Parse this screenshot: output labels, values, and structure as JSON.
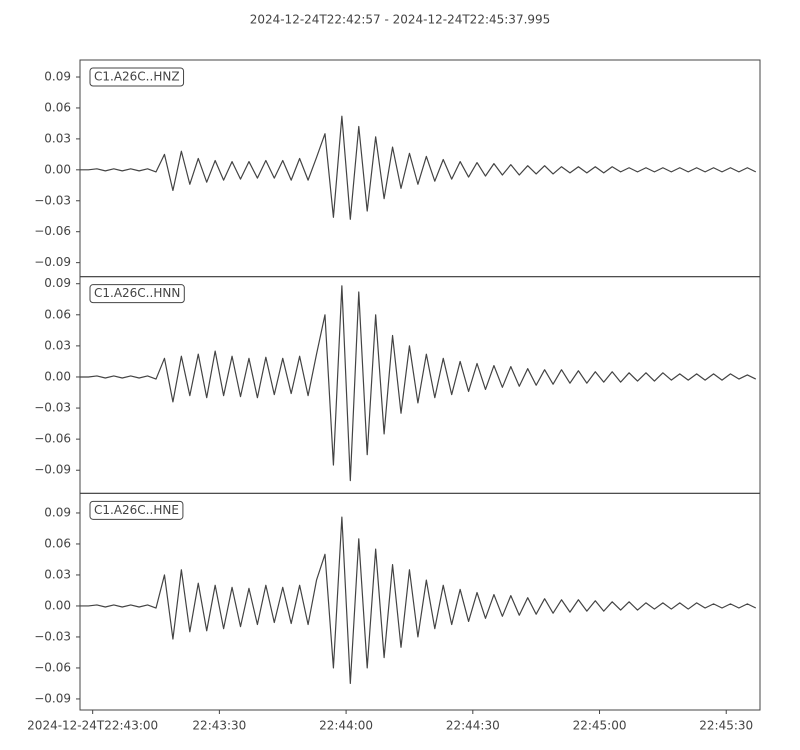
{
  "chart_data": {
    "type": "line",
    "title": "2024-12-24T22:42:57  -  2024-12-24T22:45:37.995",
    "xlim": [
      "2024-12-24T22:42:57",
      "2024-12-24T22:45:37.995"
    ],
    "xticks": [
      "2024-12-24T22:43:00",
      "22:43:30",
      "22:44:00",
      "22:44:30",
      "22:45:00",
      "22:45:30"
    ],
    "x": [
      "22:42:57",
      "22:42:59",
      "22:43:01",
      "22:43:03",
      "22:43:05",
      "22:43:07",
      "22:43:09",
      "22:43:11",
      "22:43:13",
      "22:43:15",
      "22:43:17",
      "22:43:19",
      "22:43:21",
      "22:43:23",
      "22:43:25",
      "22:43:27",
      "22:43:29",
      "22:43:31",
      "22:43:33",
      "22:43:35",
      "22:43:37",
      "22:43:39",
      "22:43:41",
      "22:43:43",
      "22:43:45",
      "22:43:47",
      "22:43:49",
      "22:43:51",
      "22:43:53",
      "22:43:55",
      "22:43:57",
      "22:43:59",
      "22:44:01",
      "22:44:03",
      "22:44:05",
      "22:44:07",
      "22:44:09",
      "22:44:11",
      "22:44:13",
      "22:44:15",
      "22:44:17",
      "22:44:19",
      "22:44:21",
      "22:44:23",
      "22:44:25",
      "22:44:27",
      "22:44:29",
      "22:44:31",
      "22:44:33",
      "22:44:35",
      "22:44:37",
      "22:44:39",
      "22:44:41",
      "22:44:43",
      "22:44:45",
      "22:44:47",
      "22:44:49",
      "22:44:51",
      "22:44:53",
      "22:44:55",
      "22:44:57",
      "22:44:59",
      "22:45:01",
      "22:45:03",
      "22:45:05",
      "22:45:07",
      "22:45:09",
      "22:45:11",
      "22:45:13",
      "22:45:15",
      "22:45:17",
      "22:45:19",
      "22:45:21",
      "22:45:23",
      "22:45:25",
      "22:45:27",
      "22:45:29",
      "22:45:31",
      "22:45:33",
      "22:45:35",
      "22:45:37"
    ],
    "series": [
      {
        "name": "C1.A26C..HNZ",
        "color": "#444444",
        "ylim": [
          -0.1036,
          0.1065
        ],
        "yticks": [
          0.09,
          0.06,
          0.03,
          {
            "value": 0,
            "label": "0.00"
          },
          {
            "value": -0.03,
            "label": "−0.03"
          },
          {
            "value": -0.06,
            "label": "−0.06"
          },
          {
            "value": -0.09,
            "label": "−0.09"
          }
        ],
        "values": [
          0,
          0,
          0.001,
          -0.001,
          0.001,
          -0.001,
          0.001,
          -0.001,
          0.001,
          -0.002,
          0.015,
          -0.02,
          0.018,
          -0.014,
          0.011,
          -0.012,
          0.009,
          -0.01,
          0.008,
          -0.009,
          0.008,
          -0.008,
          0.009,
          -0.008,
          0.009,
          -0.01,
          0.011,
          -0.01,
          0.012,
          0.035,
          -0.046,
          0.052,
          -0.048,
          0.042,
          -0.04,
          0.032,
          -0.028,
          0.022,
          -0.018,
          0.016,
          -0.014,
          0.013,
          -0.011,
          0.01,
          -0.009,
          0.008,
          -0.007,
          0.007,
          -0.006,
          0.006,
          -0.005,
          0.005,
          -0.005,
          0.004,
          -0.004,
          0.004,
          -0.004,
          0.003,
          -0.003,
          0.003,
          -0.003,
          0.003,
          -0.003,
          0.003,
          -0.002,
          0.002,
          -0.002,
          0.002,
          -0.002,
          0.002,
          -0.002,
          0.002,
          -0.002,
          0.002,
          -0.002,
          0.002,
          -0.002,
          0.002,
          -0.002,
          0.002,
          -0.002
        ]
      },
      {
        "name": "C1.A26C..HNN",
        "color": "#444444",
        "ylim": [
          -0.1123,
          0.0968
        ],
        "yticks": [
          0.09,
          0.06,
          0.03,
          {
            "value": 0,
            "label": "0.00"
          },
          {
            "value": -0.03,
            "label": "−0.03"
          },
          {
            "value": -0.06,
            "label": "−0.06"
          },
          {
            "value": -0.09,
            "label": "−0.09"
          }
        ],
        "values": [
          0,
          0,
          0.001,
          -0.001,
          0.001,
          -0.001,
          0.001,
          -0.001,
          0.001,
          -0.002,
          0.018,
          -0.024,
          0.02,
          -0.018,
          0.022,
          -0.02,
          0.025,
          -0.018,
          0.02,
          -0.019,
          0.018,
          -0.02,
          0.019,
          -0.017,
          0.018,
          -0.016,
          0.02,
          -0.018,
          0.022,
          0.06,
          -0.085,
          0.088,
          -0.1,
          0.082,
          -0.075,
          0.06,
          -0.055,
          0.04,
          -0.035,
          0.03,
          -0.025,
          0.022,
          -0.02,
          0.018,
          -0.017,
          0.015,
          -0.014,
          0.013,
          -0.012,
          0.011,
          -0.01,
          0.01,
          -0.009,
          0.008,
          -0.008,
          0.007,
          -0.007,
          0.007,
          -0.006,
          0.006,
          -0.006,
          0.005,
          -0.005,
          0.005,
          -0.005,
          0.004,
          -0.004,
          0.004,
          -0.004,
          0.004,
          -0.003,
          0.003,
          -0.003,
          0.003,
          -0.003,
          0.003,
          -0.003,
          0.003,
          -0.002,
          0.002,
          -0.002
        ]
      },
      {
        "name": "C1.A26C..HNE",
        "color": "#444444",
        "ylim": [
          -0.1007,
          0.109
        ],
        "yticks": [
          0.09,
          0.06,
          0.03,
          {
            "value": 0,
            "label": "0.00"
          },
          {
            "value": -0.03,
            "label": "−0.03"
          },
          {
            "value": -0.06,
            "label": "−0.06"
          },
          {
            "value": -0.09,
            "label": "−0.09"
          }
        ],
        "values": [
          0,
          0,
          0.001,
          -0.001,
          0.001,
          -0.001,
          0.001,
          -0.001,
          0.001,
          -0.002,
          0.03,
          -0.032,
          0.035,
          -0.025,
          0.022,
          -0.024,
          0.02,
          -0.022,
          0.018,
          -0.02,
          0.017,
          -0.018,
          0.02,
          -0.016,
          0.018,
          -0.017,
          0.02,
          -0.018,
          0.025,
          0.05,
          -0.06,
          0.086,
          -0.075,
          0.065,
          -0.06,
          0.055,
          -0.05,
          0.04,
          -0.04,
          0.035,
          -0.03,
          0.025,
          -0.022,
          0.02,
          -0.018,
          0.016,
          -0.015,
          0.013,
          -0.012,
          0.011,
          -0.01,
          0.01,
          -0.009,
          0.008,
          -0.008,
          0.007,
          -0.007,
          0.006,
          -0.006,
          0.006,
          -0.005,
          0.005,
          -0.005,
          0.004,
          -0.004,
          0.004,
          -0.004,
          0.003,
          -0.003,
          0.003,
          -0.003,
          0.003,
          -0.003,
          0.003,
          -0.002,
          0.002,
          -0.002,
          0.002,
          -0.002,
          0.002,
          -0.002
        ]
      }
    ]
  }
}
